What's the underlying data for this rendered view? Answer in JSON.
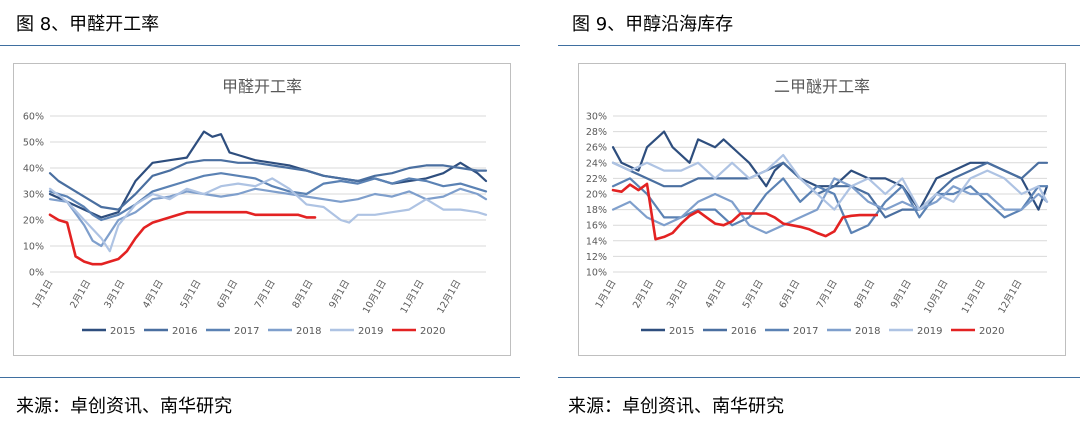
{
  "figures": [
    {
      "caption": "图 8、甲醛开工率",
      "source": "来源：卓创资讯、南华研究"
    },
    {
      "caption": "图 9、甲醇沿海库存",
      "source": "来源：卓创资讯、南华研究"
    }
  ],
  "colors": {
    "2015": "#2e4e7e",
    "2016": "#4a6fa0",
    "2017": "#5b82b4",
    "2018": "#7f9fcc",
    "2019": "#aec3e3",
    "2020": "#e32222",
    "rule": "#3f6fa0"
  },
  "chart_data": [
    {
      "type": "line",
      "title": "甲醛开工率",
      "ylim": [
        0,
        60
      ],
      "yticks": [
        "0%",
        "10%",
        "20%",
        "30%",
        "40%",
        "50%",
        "60%"
      ],
      "xticks": [
        "1月1日",
        "2月1日",
        "3月1日",
        "4月1日",
        "5月1日",
        "6月1日",
        "7月1日",
        "8月1日",
        "9月1日",
        "10月1日",
        "11月1日",
        "12月1日"
      ],
      "week_range": [
        1,
        52
      ],
      "grid": true,
      "legend_position": "bottom",
      "series": [
        {
          "name": "2015",
          "weeks": [
            1,
            3,
            5,
            7,
            9,
            11,
            13,
            15,
            17,
            19,
            20,
            21,
            22,
            23,
            25,
            27,
            29,
            31,
            33,
            35,
            37,
            39,
            41,
            43,
            45,
            47,
            49,
            51,
            52
          ],
          "values": [
            30,
            27,
            24,
            21,
            23,
            35,
            42,
            43,
            44,
            54,
            52,
            53,
            46,
            45,
            43,
            42,
            41,
            39,
            37,
            36,
            35,
            36,
            34,
            35,
            36,
            38,
            42,
            38,
            35
          ]
        },
        {
          "name": "2016",
          "weeks": [
            1,
            2,
            4,
            6,
            7,
            9,
            11,
            13,
            15,
            17,
            19,
            21,
            23,
            25,
            27,
            29,
            31,
            33,
            35,
            37,
            39,
            41,
            43,
            45,
            47,
            49,
            51,
            52
          ],
          "values": [
            38,
            35,
            31,
            27,
            25,
            24,
            30,
            37,
            39,
            42,
            43,
            43,
            42,
            42,
            41,
            40,
            39,
            37,
            36,
            35,
            37,
            38,
            40,
            41,
            41,
            40,
            39,
            39
          ]
        },
        {
          "name": "2017",
          "weeks": [
            1,
            3,
            5,
            6,
            7,
            9,
            11,
            13,
            15,
            17,
            19,
            21,
            23,
            25,
            27,
            29,
            31,
            33,
            35,
            37,
            39,
            41,
            43,
            45,
            47,
            49,
            51,
            52
          ],
          "values": [
            31,
            29,
            25,
            22,
            20,
            22,
            26,
            31,
            33,
            35,
            37,
            38,
            37,
            36,
            33,
            31,
            30,
            34,
            35,
            34,
            36,
            34,
            36,
            35,
            33,
            34,
            32,
            31
          ]
        },
        {
          "name": "2018",
          "weeks": [
            1,
            3,
            5,
            6,
            7,
            9,
            11,
            13,
            15,
            17,
            19,
            21,
            23,
            25,
            27,
            29,
            31,
            33,
            35,
            37,
            39,
            41,
            43,
            45,
            47,
            49,
            51,
            52
          ],
          "values": [
            28,
            27,
            18,
            12,
            10,
            20,
            23,
            28,
            29,
            31,
            30,
            29,
            30,
            32,
            31,
            30,
            29,
            28,
            27,
            28,
            30,
            29,
            31,
            28,
            29,
            32,
            30,
            28
          ]
        },
        {
          "name": "2019",
          "weeks": [
            1,
            3,
            5,
            7,
            8,
            9,
            11,
            13,
            15,
            17,
            19,
            21,
            23,
            25,
            27,
            29,
            31,
            33,
            35,
            36,
            37,
            39,
            41,
            43,
            45,
            47,
            49,
            51,
            52
          ],
          "values": [
            32,
            27,
            20,
            13,
            8,
            18,
            26,
            30,
            28,
            32,
            30,
            33,
            34,
            33,
            36,
            32,
            26,
            25,
            20,
            19,
            22,
            22,
            23,
            24,
            28,
            24,
            24,
            23,
            22
          ]
        },
        {
          "name": "2020",
          "weeks": [
            1,
            2,
            3,
            4,
            5,
            6,
            7,
            8,
            9,
            10,
            11,
            12,
            13,
            14,
            15,
            16,
            17,
            18,
            19,
            20,
            21,
            22,
            23,
            24,
            25,
            26,
            27,
            28,
            29,
            30,
            31,
            32
          ],
          "values": [
            22,
            20,
            19,
            6,
            4,
            3,
            3,
            4,
            5,
            8,
            13,
            17,
            19,
            20,
            21,
            22,
            23,
            23,
            23,
            23,
            23,
            23,
            23,
            23,
            22,
            22,
            22,
            22,
            22,
            22,
            21,
            21
          ]
        }
      ]
    },
    {
      "type": "line",
      "title": "二甲醚开工率",
      "ylim": [
        10,
        30
      ],
      "yticks": [
        "10%",
        "12%",
        "14%",
        "16%",
        "18%",
        "20%",
        "22%",
        "24%",
        "26%",
        "28%",
        "30%"
      ],
      "xticks": [
        "1月1日",
        "2月1日",
        "3月1日",
        "4月1日",
        "5月1日",
        "6月1日",
        "7月1日",
        "8月1日",
        "9月1日",
        "10月1日",
        "11月1日",
        "12月1日"
      ],
      "week_range": [
        1,
        52
      ],
      "grid": true,
      "legend_position": "bottom",
      "series": [
        {
          "name": "2015",
          "weeks": [
            1,
            2,
            4,
            5,
            7,
            8,
            10,
            11,
            13,
            14,
            16,
            17,
            19,
            20,
            21,
            23,
            25,
            27,
            29,
            31,
            33,
            35,
            37,
            39,
            41,
            43,
            45,
            47,
            49,
            51,
            52
          ],
          "values": [
            26,
            24,
            23,
            26,
            28,
            26,
            24,
            27,
            26,
            27,
            25,
            24,
            21,
            23,
            24,
            22,
            21,
            21,
            23,
            22,
            22,
            21,
            18,
            22,
            23,
            24,
            24,
            23,
            22,
            18,
            21
          ]
        },
        {
          "name": "2016",
          "weeks": [
            1,
            3,
            5,
            7,
            9,
            11,
            13,
            15,
            17,
            19,
            21,
            23,
            25,
            27,
            29,
            31,
            33,
            35,
            37,
            39,
            41,
            43,
            45,
            47,
            49,
            51,
            52
          ],
          "values": [
            24,
            23,
            22,
            21,
            21,
            22,
            22,
            22,
            22,
            23,
            24,
            22,
            20,
            21,
            21,
            20,
            17,
            18,
            18,
            20,
            22,
            23,
            24,
            23,
            22,
            24,
            24
          ]
        },
        {
          "name": "2017",
          "weeks": [
            1,
            3,
            5,
            7,
            9,
            11,
            13,
            15,
            17,
            19,
            21,
            23,
            25,
            27,
            29,
            31,
            33,
            35,
            37,
            39,
            41,
            43,
            45,
            47,
            49,
            51,
            52
          ],
          "values": [
            21,
            22,
            20,
            17,
            17,
            18,
            18,
            16,
            17,
            20,
            22,
            19,
            21,
            20,
            15,
            16,
            19,
            21,
            17,
            20,
            20,
            21,
            19,
            17,
            18,
            21,
            21
          ]
        },
        {
          "name": "2018",
          "weeks": [
            1,
            3,
            5,
            7,
            9,
            11,
            13,
            15,
            17,
            19,
            21,
            23,
            25,
            27,
            29,
            31,
            33,
            35,
            37,
            39,
            41,
            43,
            45,
            47,
            49,
            51,
            52
          ],
          "values": [
            18,
            19,
            17,
            16,
            17,
            19,
            20,
            19,
            16,
            15,
            16,
            17,
            18,
            22,
            21,
            19,
            18,
            19,
            18,
            19,
            21,
            20,
            20,
            18,
            18,
            20,
            19
          ]
        },
        {
          "name": "2019",
          "weeks": [
            1,
            3,
            5,
            7,
            9,
            11,
            13,
            15,
            17,
            19,
            21,
            23,
            25,
            27,
            29,
            31,
            33,
            35,
            37,
            39,
            41,
            43,
            45,
            47,
            49,
            51,
            52
          ],
          "values": [
            24,
            23,
            24,
            23,
            23,
            24,
            22,
            24,
            22,
            23,
            25,
            22,
            20,
            18,
            21,
            22,
            20,
            22,
            18,
            20,
            19,
            22,
            23,
            22,
            20,
            21,
            19
          ]
        },
        {
          "name": "2020",
          "weeks": [
            1,
            2,
            3,
            4,
            5,
            6,
            7,
            8,
            9,
            10,
            11,
            12,
            13,
            14,
            15,
            16,
            17,
            18,
            19,
            20,
            21,
            22,
            23,
            24,
            25,
            26,
            27,
            28,
            29,
            30,
            31,
            32
          ],
          "values": [
            20.5,
            20.3,
            21.2,
            20.5,
            21.3,
            14.2,
            14.5,
            15,
            16.2,
            17.2,
            17.8,
            17,
            16.2,
            16,
            16.5,
            17.5,
            17.5,
            17.5,
            17.5,
            17,
            16.2,
            16,
            15.8,
            15.5,
            15,
            14.6,
            15.2,
            17,
            17.2,
            17.3,
            17.3,
            17.3
          ]
        }
      ]
    }
  ]
}
